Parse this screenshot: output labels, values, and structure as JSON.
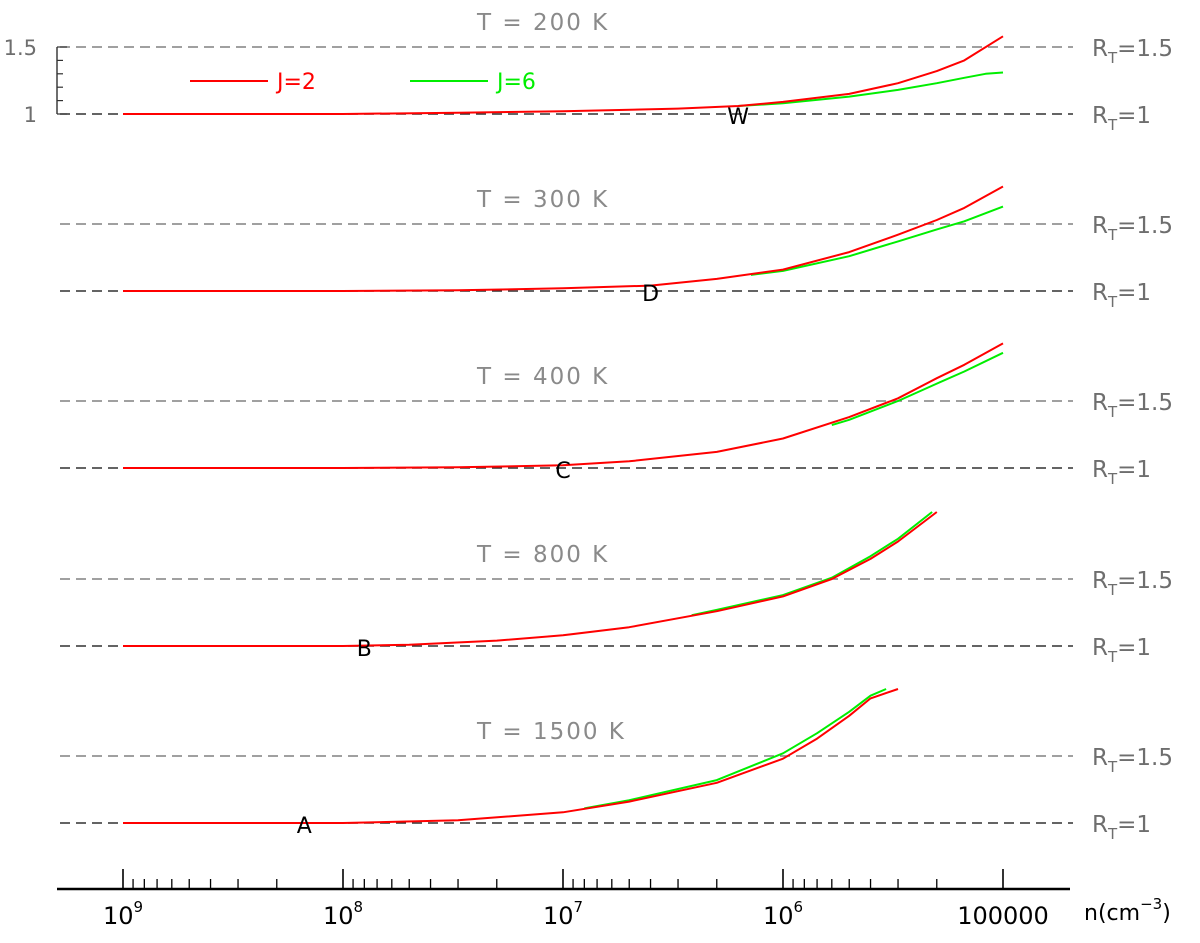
{
  "chart_data": {
    "type": "line",
    "x_axis": {
      "label": "n(cm⁻³)",
      "label_base": "n(cm",
      "label_exp": "−3",
      "label_close": ")",
      "reversed": true,
      "scale": "log",
      "xlim": [
        1000000000.0,
        100000.0
      ],
      "ticks": [
        {
          "value": 1000000000.0,
          "base": "10",
          "exp": "9"
        },
        {
          "value": 100000000.0,
          "base": "10",
          "exp": "8"
        },
        {
          "value": 10000000.0,
          "base": "10",
          "exp": "7"
        },
        {
          "value": 1000000.0,
          "base": "10",
          "exp": "6"
        },
        {
          "value": 100000.0,
          "base": "100000",
          "exp": ""
        }
      ]
    },
    "legend": {
      "placement": "top-left",
      "entries": [
        {
          "name": "J=2",
          "color": "#ff0000"
        },
        {
          "name": "J=6",
          "color": "#00ee00"
        }
      ]
    },
    "y_ticks_top_panel": [
      "1.5",
      "1"
    ],
    "ref_levels": [
      {
        "value": 1.5,
        "label_base": "R",
        "label_sub": "T",
        "label_rest": "=1.5"
      },
      {
        "value": 1.0,
        "label_base": "R",
        "label_sub": "T",
        "label_rest": "=1"
      }
    ],
    "panels": [
      {
        "title": "T = 200 K",
        "point_label": "W",
        "point_x": 1600000.0,
        "series": [
          {
            "name": "J=2",
            "x": [
              1000000000.0,
              100000000.0,
              30000000.0,
              10000000.0,
              3000000.0,
              1600000.0,
              1000000.0,
              500000.0,
              300000.0,
              200000.0,
              150000.0,
              100000.0
            ],
            "y": [
              1.0,
              1.0,
              1.01,
              1.02,
              1.04,
              1.06,
              1.09,
              1.15,
              1.23,
              1.32,
              1.4,
              1.58
            ]
          },
          {
            "name": "J=6",
            "x": [
              1600000.0,
              1000000.0,
              500000.0,
              300000.0,
              200000.0,
              150000.0,
              120000.0,
              100000.0
            ],
            "y": [
              1.06,
              1.08,
              1.13,
              1.18,
              1.23,
              1.27,
              1.3,
              1.31
            ]
          }
        ]
      },
      {
        "title": "T = 300 K",
        "point_label": "D",
        "point_x": 4000000.0,
        "series": [
          {
            "name": "J=2",
            "x": [
              1000000000.0,
              100000000.0,
              30000000.0,
              10000000.0,
              4000000.0,
              2000000.0,
              1000000.0,
              500000.0,
              300000.0,
              200000.0,
              150000.0,
              100000.0
            ],
            "y": [
              1.0,
              1.0,
              1.005,
              1.02,
              1.04,
              1.09,
              1.16,
              1.29,
              1.42,
              1.53,
              1.62,
              1.78
            ]
          },
          {
            "name": "J=6",
            "x": [
              1400000.0,
              1000000.0,
              500000.0,
              300000.0,
              200000.0,
              150000.0,
              100000.0
            ],
            "y": [
              1.12,
              1.15,
              1.26,
              1.37,
              1.46,
              1.52,
              1.63
            ]
          }
        ]
      },
      {
        "title": "T = 400 K",
        "point_label": "C",
        "point_x": 10000000.0,
        "series": [
          {
            "name": "J=2",
            "x": [
              1000000000.0,
              100000000.0,
              30000000.0,
              10000000.0,
              5000000.0,
              2000000.0,
              1000000.0,
              500000.0,
              300000.0,
              200000.0,
              150000.0,
              100000.0
            ],
            "y": [
              1.0,
              1.0,
              1.005,
              1.02,
              1.05,
              1.12,
              1.22,
              1.38,
              1.52,
              1.67,
              1.77,
              1.93
            ]
          },
          {
            "name": "J=6",
            "x": [
              600000.0,
              500000.0,
              300000.0,
              200000.0,
              150000.0,
              100000.0
            ],
            "y": [
              1.32,
              1.36,
              1.5,
              1.63,
              1.72,
              1.86
            ]
          }
        ]
      },
      {
        "title": "T = 800 K",
        "point_label": "B",
        "point_x": 80000000.0,
        "series": [
          {
            "name": "J=2",
            "x": [
              1000000000.0,
              100000000.0,
              50000000.0,
              20000000.0,
              10000000.0,
              5000000.0,
              2000000.0,
              1000000.0,
              600000.0,
              400000.0,
              300000.0,
              200000.0
            ],
            "y": [
              1.0,
              1.0,
              1.01,
              1.04,
              1.08,
              1.14,
              1.26,
              1.37,
              1.5,
              1.65,
              1.78,
              2.0
            ]
          },
          {
            "name": "J=6",
            "x": [
              2600000.0,
              2000000.0,
              1000000.0,
              600000.0,
              400000.0,
              300000.0,
              210000.0
            ],
            "y": [
              1.23,
              1.27,
              1.38,
              1.51,
              1.67,
              1.8,
              2.0
            ]
          }
        ]
      },
      {
        "title": "T = 1500 K",
        "point_label": "A",
        "point_x": 150000000.0,
        "series": [
          {
            "name": "J=2",
            "x": [
              1000000000.0,
              100000000.0,
              30000000.0,
              10000000.0,
              5000000.0,
              2000000.0,
              1000000.0,
              700000.0,
              500000.0,
              400000.0,
              300000.0
            ],
            "y": [
              1.0,
              1.0,
              1.02,
              1.08,
              1.16,
              1.3,
              1.48,
              1.63,
              1.8,
              1.93,
              2.0
            ]
          },
          {
            "name": "J=6",
            "x": [
              8000000.0,
              5000000.0,
              2000000.0,
              1000000.0,
              700000.0,
              500000.0,
              400000.0,
              340000.0
            ],
            "y": [
              1.11,
              1.17,
              1.32,
              1.52,
              1.67,
              1.83,
              1.95,
              2.0
            ]
          }
        ]
      }
    ]
  }
}
